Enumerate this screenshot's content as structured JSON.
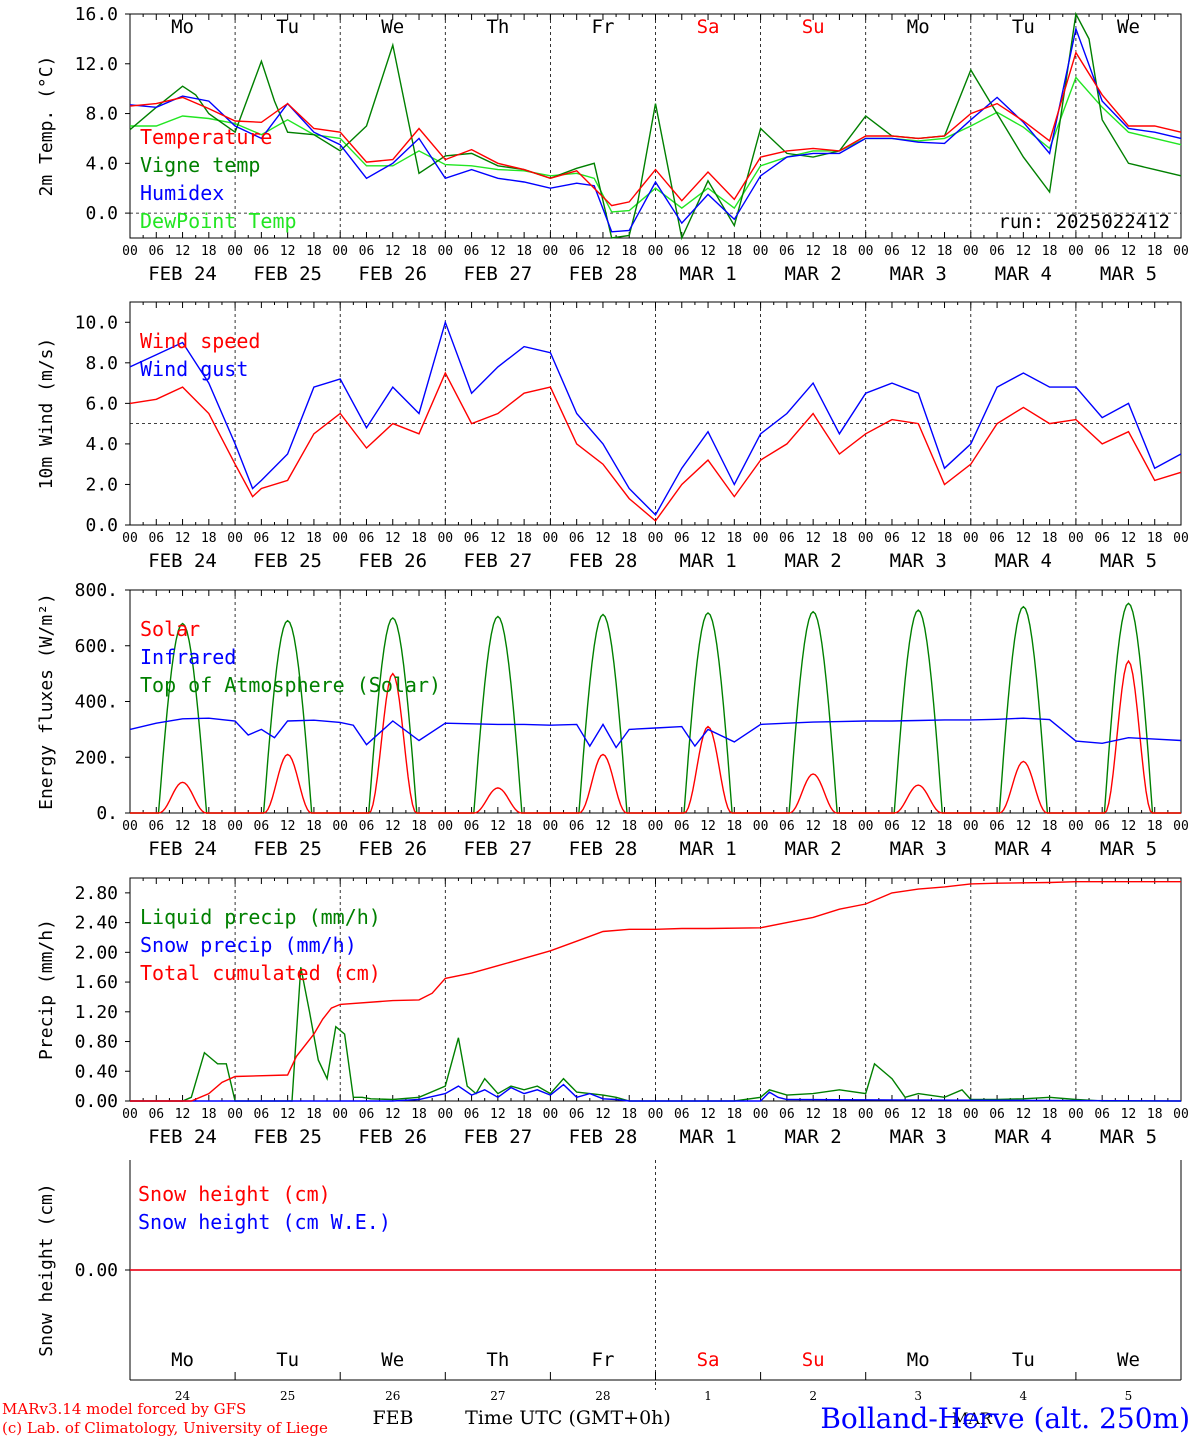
{
  "colors": {
    "red": "#ff0000",
    "green": "#008000",
    "blue": "#0000ff",
    "lightgreen": "#22e622",
    "black": "#000000"
  },
  "weekdays": [
    "Mo",
    "Tu",
    "We",
    "Th",
    "Fr",
    "Sa",
    "Su",
    "Mo",
    "Tu",
    "We"
  ],
  "weekend_days": [
    5,
    6
  ],
  "hour_labels": [
    "00",
    "06",
    "12",
    "18"
  ],
  "date_labels": [
    "FEB 24",
    "FEB 25",
    "FEB 26",
    "FEB 27",
    "FEB 28",
    "MAR  1",
    "MAR  2",
    "MAR  3",
    "MAR  4",
    "MAR  5"
  ],
  "bottom": {
    "day_numbers": [
      "24",
      "25",
      "26",
      "27",
      "28",
      "1",
      "2",
      "3",
      "4",
      "5"
    ],
    "month_feb": "FEB",
    "month_mar": "MAR",
    "xlabel": "Time UTC (GMT+0h)",
    "credit_line1": "MARv3.14 model forced by GFS",
    "credit_line2": "(c) Lab. of Climatology, University of Liege",
    "station": "Bolland-Herve (alt. 250m)"
  },
  "chart_data": [
    {
      "type": "line",
      "id": "temp",
      "ylabel": "2m Temp. (°C)",
      "ylim": [
        -2,
        16
      ],
      "yticks": [
        "16.0",
        "12.0",
        "8.0",
        "4.0",
        "0.0"
      ],
      "ytick_values": [
        16,
        12,
        8,
        4,
        0
      ],
      "reference_line": 0,
      "annotation": "run: 2025022412",
      "x_unit": "hours since 2025-02-24 00 UTC",
      "series": [
        {
          "name": "Temperature",
          "color": "red",
          "x": [
            0,
            6,
            12,
            18,
            24,
            30,
            36,
            42,
            48,
            54,
            60,
            66,
            72,
            78,
            84,
            90,
            96,
            102,
            106,
            110,
            114,
            120,
            126,
            132,
            138,
            144,
            150,
            156,
            162,
            168,
            174,
            180,
            186,
            192,
            198,
            204,
            210,
            216,
            222,
            228,
            234,
            240
          ],
          "values": [
            8.6,
            8.8,
            9.3,
            8.4,
            7.4,
            7.3,
            8.8,
            6.8,
            6.5,
            4.1,
            4.3,
            6.8,
            4.3,
            5.1,
            4.0,
            3.5,
            2.8,
            3.4,
            2.0,
            0.6,
            0.9,
            3.5,
            1.0,
            3.3,
            1.1,
            4.5,
            5.0,
            5.2,
            5.0,
            6.2,
            6.2,
            6.0,
            6.2,
            8.0,
            8.8,
            7.4,
            5.8,
            12.9,
            9.5,
            7.0,
            7.0,
            6.5
          ]
        },
        {
          "name": "Vigne temp",
          "color": "green",
          "x": [
            0,
            6,
            12,
            15,
            18,
            24,
            30,
            33,
            36,
            42,
            48,
            54,
            60,
            66,
            72,
            78,
            84,
            90,
            96,
            102,
            106,
            110,
            114,
            116,
            120,
            126,
            132,
            138,
            144,
            150,
            156,
            162,
            168,
            174,
            180,
            186,
            192,
            198,
            204,
            210,
            216,
            219,
            222,
            228,
            234,
            240
          ],
          "values": [
            6.7,
            8.5,
            10.2,
            9.5,
            8.0,
            6.5,
            12.2,
            9.0,
            6.5,
            6.3,
            5.0,
            7.0,
            13.5,
            3.2,
            4.6,
            4.8,
            3.8,
            3.5,
            2.8,
            3.6,
            4.0,
            -2.0,
            -1.8,
            1.0,
            8.8,
            -2.5,
            2.6,
            -1.0,
            6.8,
            4.8,
            4.5,
            5.0,
            7.8,
            6.2,
            6.0,
            6.2,
            11.5,
            8.0,
            4.5,
            1.7,
            16.0,
            14.0,
            7.5,
            4.0,
            3.5,
            3.0
          ]
        },
        {
          "name": "Humidex",
          "color": "blue",
          "x": [
            0,
            6,
            12,
            18,
            24,
            30,
            36,
            42,
            48,
            54,
            60,
            66,
            72,
            78,
            84,
            90,
            96,
            102,
            106,
            110,
            114,
            120,
            126,
            132,
            138,
            144,
            150,
            156,
            162,
            168,
            174,
            180,
            186,
            192,
            198,
            204,
            210,
            216,
            222,
            228,
            234,
            240
          ],
          "values": [
            8.7,
            8.5,
            9.4,
            9.0,
            7.0,
            6.0,
            8.8,
            6.5,
            5.5,
            2.8,
            4.0,
            6.0,
            2.8,
            3.5,
            2.8,
            2.5,
            2.0,
            2.4,
            2.2,
            -1.5,
            -1.4,
            2.5,
            -0.8,
            1.5,
            -0.5,
            3.0,
            4.5,
            4.8,
            4.8,
            6.0,
            6.0,
            5.7,
            5.6,
            7.5,
            9.3,
            7.3,
            4.8,
            14.8,
            9.0,
            6.8,
            6.5,
            6.0
          ]
        },
        {
          "name": "DewPoint Temp",
          "color": "lightgreen",
          "x": [
            0,
            6,
            12,
            18,
            24,
            30,
            36,
            42,
            48,
            54,
            60,
            66,
            72,
            78,
            84,
            90,
            96,
            102,
            106,
            110,
            114,
            120,
            126,
            132,
            138,
            144,
            150,
            156,
            162,
            168,
            174,
            180,
            186,
            192,
            198,
            204,
            210,
            216,
            222,
            228,
            234,
            240
          ],
          "values": [
            7.0,
            7.0,
            7.8,
            7.6,
            7.2,
            6.3,
            7.5,
            6.3,
            6.0,
            3.8,
            3.8,
            5.0,
            3.9,
            3.8,
            3.5,
            3.4,
            3.0,
            3.2,
            2.8,
            0.1,
            0.2,
            2.0,
            0.4,
            2.0,
            0.4,
            3.8,
            4.5,
            5.0,
            5.0,
            6.0,
            6.0,
            5.8,
            6.0,
            7.0,
            8.1,
            6.9,
            5.2,
            10.9,
            8.5,
            6.5,
            6.0,
            5.5
          ]
        }
      ]
    },
    {
      "type": "line",
      "id": "wind",
      "ylabel": "10m Wind (m/s)",
      "ylim": [
        0,
        11
      ],
      "yticks": [
        "10.0",
        "8.0",
        "6.0",
        "4.0",
        "2.0",
        "0.0"
      ],
      "ytick_values": [
        10,
        8,
        6,
        4,
        2,
        0
      ],
      "reference_line": 5,
      "x_unit": "hours since 2025-02-24 00 UTC",
      "series": [
        {
          "name": "Wind speed",
          "color": "red",
          "x": [
            0,
            6,
            12,
            18,
            24,
            28,
            30,
            36,
            42,
            48,
            54,
            60,
            66,
            72,
            78,
            84,
            90,
            96,
            102,
            108,
            114,
            120,
            126,
            132,
            138,
            144,
            150,
            156,
            162,
            168,
            174,
            180,
            186,
            192,
            198,
            204,
            210,
            216,
            222,
            228,
            234,
            240
          ],
          "values": [
            6.0,
            6.2,
            6.8,
            5.5,
            3.0,
            1.4,
            1.8,
            2.2,
            4.5,
            5.5,
            3.8,
            5.0,
            4.5,
            7.5,
            5.0,
            5.5,
            6.5,
            6.8,
            4.0,
            3.0,
            1.3,
            0.2,
            2.0,
            3.2,
            1.4,
            3.2,
            4.0,
            5.5,
            3.5,
            4.5,
            5.2,
            5.0,
            2.0,
            3.0,
            5.0,
            5.8,
            5.0,
            5.2,
            4.0,
            4.6,
            2.2,
            2.6
          ]
        },
        {
          "name": "Wind gust",
          "color": "blue",
          "x": [
            0,
            6,
            12,
            18,
            24,
            28,
            30,
            36,
            42,
            48,
            54,
            60,
            66,
            72,
            78,
            84,
            90,
            96,
            102,
            108,
            114,
            120,
            126,
            132,
            138,
            144,
            150,
            156,
            162,
            168,
            174,
            180,
            186,
            192,
            198,
            204,
            210,
            216,
            222,
            228,
            234,
            240
          ],
          "values": [
            7.8,
            8.4,
            9.0,
            7.0,
            4.0,
            1.8,
            2.2,
            3.5,
            6.8,
            7.2,
            4.8,
            6.8,
            5.5,
            10.0,
            6.5,
            7.8,
            8.8,
            8.5,
            5.5,
            4.0,
            1.8,
            0.5,
            2.8,
            4.6,
            2.0,
            4.5,
            5.5,
            7.0,
            4.5,
            6.5,
            7.0,
            6.5,
            2.8,
            4.0,
            6.8,
            7.5,
            6.8,
            6.8,
            5.3,
            6.0,
            2.8,
            3.5
          ]
        }
      ]
    },
    {
      "type": "line",
      "id": "flux",
      "ylabel": "Energy fluxes (W/m²)",
      "ylim": [
        0,
        800
      ],
      "yticks": [
        "800.",
        "600.",
        "400.",
        "200.",
        "0."
      ],
      "ytick_values": [
        800,
        600,
        400,
        200,
        0
      ],
      "x_unit": "hours since 2025-02-24 00 UTC",
      "series": [
        {
          "name": "Solar",
          "color": "red",
          "daily_peaks": [
            110,
            210,
            500,
            90,
            210,
            310,
            140,
            100,
            185,
            545
          ]
        },
        {
          "name": "Infrared",
          "color": "blue",
          "x": [
            0,
            6,
            12,
            18,
            24,
            27,
            30,
            33,
            36,
            42,
            48,
            51,
            54,
            60,
            66,
            72,
            78,
            84,
            90,
            96,
            102,
            105,
            108,
            111,
            114,
            120,
            126,
            129,
            132,
            138,
            144,
            150,
            156,
            162,
            168,
            174,
            180,
            186,
            192,
            198,
            204,
            210,
            216,
            222,
            228,
            234,
            240
          ],
          "values": [
            300,
            322,
            338,
            340,
            330,
            280,
            300,
            270,
            330,
            333,
            325,
            315,
            245,
            330,
            260,
            322,
            320,
            318,
            318,
            315,
            318,
            240,
            318,
            235,
            300,
            305,
            310,
            240,
            300,
            255,
            318,
            322,
            326,
            328,
            330,
            330,
            332,
            334,
            334,
            336,
            340,
            335,
            258,
            250,
            270,
            265,
            260
          ]
        },
        {
          "name": "Top of Atmosphere (Solar)",
          "color": "green",
          "daily_peaks": [
            680,
            690,
            700,
            705,
            712,
            718,
            722,
            728,
            740,
            752
          ]
        }
      ]
    },
    {
      "type": "line",
      "id": "precip",
      "ylabel": "Precip (mm/h)",
      "ylim": [
        0,
        3.0
      ],
      "yticks": [
        "2.80",
        "2.40",
        "2.00",
        "1.60",
        "1.20",
        "0.80",
        "0.40",
        "0.00"
      ],
      "ytick_values": [
        2.8,
        2.4,
        2.0,
        1.6,
        1.2,
        0.8,
        0.4,
        0
      ],
      "x_unit": "hours since 2025-02-24 00 UTC",
      "series": [
        {
          "name": "Liquid precip (mm/h)",
          "color": "green",
          "x": [
            0,
            12,
            14,
            17,
            19,
            20,
            22,
            24,
            37,
            39,
            41,
            43,
            45,
            47,
            49,
            51,
            53,
            55,
            60,
            66,
            72,
            75,
            77,
            79,
            81,
            84,
            87,
            90,
            93,
            96,
            99,
            102,
            105,
            108,
            111,
            114,
            120,
            126,
            132,
            138,
            144,
            146,
            150,
            156,
            162,
            168,
            170,
            174,
            177,
            180,
            186,
            190,
            192,
            198,
            204,
            210,
            216,
            222,
            228,
            234,
            240
          ],
          "values": [
            0,
            0,
            0.05,
            0.65,
            0.55,
            0.5,
            0.5,
            0,
            0,
            1.8,
            1.2,
            0.55,
            0.3,
            1.0,
            0.9,
            0.05,
            0.05,
            0.03,
            0.02,
            0.05,
            0.2,
            0.85,
            0.2,
            0.1,
            0.3,
            0.1,
            0.2,
            0.15,
            0.2,
            0.1,
            0.3,
            0.12,
            0.1,
            0.08,
            0.05,
            0,
            0,
            0,
            0,
            0,
            0.05,
            0.15,
            0.08,
            0.1,
            0.15,
            0.1,
            0.5,
            0.3,
            0.05,
            0.1,
            0.05,
            0.15,
            0.02,
            0.02,
            0.03,
            0.05,
            0.02,
            0,
            0,
            0,
            0
          ]
        },
        {
          "name": "Snow precip (mm/h)",
          "color": "blue",
          "x": [
            0,
            60,
            66,
            72,
            75,
            78,
            81,
            84,
            87,
            90,
            93,
            96,
            99,
            102,
            105,
            108,
            111,
            114,
            144,
            146,
            148,
            150,
            240
          ],
          "values": [
            0,
            0,
            0.02,
            0.1,
            0.2,
            0.08,
            0.15,
            0.05,
            0.18,
            0.1,
            0.15,
            0.08,
            0.22,
            0.05,
            0.1,
            0.03,
            0.02,
            0,
            0,
            0.12,
            0.05,
            0.02,
            0
          ]
        },
        {
          "name": "Total cumulated (cm)",
          "color": "red",
          "x": [
            0,
            14,
            18,
            21,
            24,
            36,
            38,
            42,
            44,
            46,
            48,
            60,
            66,
            69,
            72,
            78,
            84,
            90,
            96,
            102,
            108,
            114,
            120,
            126,
            132,
            144,
            150,
            156,
            162,
            168,
            174,
            180,
            186,
            192,
            198,
            210,
            216,
            240
          ],
          "values": [
            0,
            0,
            0.1,
            0.25,
            0.33,
            0.35,
            0.6,
            0.9,
            1.1,
            1.25,
            1.3,
            1.35,
            1.36,
            1.45,
            1.65,
            1.72,
            1.82,
            1.92,
            2.02,
            2.15,
            2.28,
            2.31,
            2.31,
            2.32,
            2.32,
            2.33,
            2.4,
            2.47,
            2.58,
            2.65,
            2.8,
            2.85,
            2.88,
            2.92,
            2.93,
            2.94,
            2.95,
            2.95
          ]
        }
      ]
    },
    {
      "type": "line",
      "id": "snow",
      "ylabel": "Snow height (cm)",
      "yticks": [
        "0.00"
      ],
      "series": [
        {
          "name": "Snow height (cm)",
          "color": "red",
          "values": [
            0,
            0
          ]
        },
        {
          "name": "Snow height (cm W.E.)",
          "color": "blue",
          "values": [
            0,
            0
          ]
        }
      ]
    }
  ]
}
